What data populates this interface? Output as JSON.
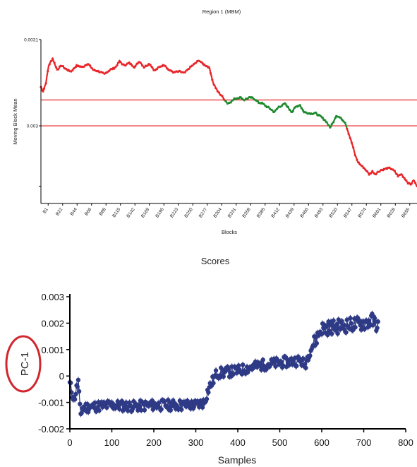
{
  "chart_data": [
    {
      "type": "line",
      "title": "Region 1 (MBM)",
      "xlabel": "Blocks",
      "ylabel": "Moving Block Mean",
      "ylim": [
        0.00291,
        0.0031
      ],
      "y_ticks": [
        {
          "value": 0.0031,
          "label": "0.0031"
        },
        {
          "value": 0.003,
          "label": "0.003"
        }
      ],
      "categories": [
        "B1",
        "B22",
        "B44",
        "B66",
        "B88",
        "B115",
        "B142",
        "B169",
        "B196",
        "B223",
        "B250",
        "B277",
        "B304",
        "B331",
        "B358",
        "B385",
        "B412",
        "B439",
        "B466",
        "B493",
        "B520",
        "B547",
        "B574",
        "B601",
        "B628",
        "B655"
      ],
      "reference_lines": [
        0.00303,
        0.003
      ],
      "colors": {
        "above": "#e8262a",
        "between": "#1f8a2e",
        "reference": "#e8262a"
      },
      "series": [
        {
          "x": [
            1,
            5,
            10,
            15,
            22,
            30,
            38,
            45,
            55,
            65,
            75,
            85,
            95,
            105,
            115,
            125,
            135,
            142,
            150,
            160,
            169,
            178,
            186,
            196,
            205,
            215,
            223,
            230,
            240,
            250,
            258,
            266,
            277,
            285,
            293,
            300,
            304,
            310,
            318,
            325,
            331,
            336,
            342,
            348,
            358,
            366,
            372,
            378,
            385,
            392,
            398,
            405,
            412,
            420,
            428,
            435,
            439,
            446,
            452,
            458,
            466,
            473,
            480,
            486,
            493,
            500,
            507,
            514,
            520,
            526,
            531,
            537,
            541,
            547,
            552,
            556,
            560,
            565,
            570,
            574,
            580,
            585,
            590,
            596,
            601,
            607,
            612,
            618,
            628,
            636,
            642,
            648,
            655,
            660,
            665,
            670,
            676
          ],
          "values": [
            0.003045,
            0.00304,
            0.00305,
            0.00307,
            0.003078,
            0.003065,
            0.00307,
            0.003066,
            0.003063,
            0.00307,
            0.003068,
            0.003072,
            0.003065,
            0.003063,
            0.00306,
            0.003065,
            0.003068,
            0.003075,
            0.00307,
            0.003073,
            0.003068,
            0.003075,
            0.003068,
            0.003072,
            0.003064,
            0.003069,
            0.003071,
            0.003065,
            0.003062,
            0.003063,
            0.003061,
            0.003066,
            0.003072,
            0.003076,
            0.003071,
            0.003069,
            0.003066,
            0.00305,
            0.00304,
            0.003035,
            0.00303,
            0.003026,
            0.003028,
            0.003031,
            0.003033,
            0.00303,
            0.003032,
            0.003033,
            0.003031,
            0.003027,
            0.003026,
            0.003023,
            0.00302,
            0.003016,
            0.003022,
            0.003024,
            0.003026,
            0.00302,
            0.003016,
            0.003022,
            0.003024,
            0.003016,
            0.003015,
            0.003014,
            0.003015,
            0.003012,
            0.003009,
            0.003004,
            0.002998,
            0.003005,
            0.003012,
            0.00301,
            0.003008,
            0.003004,
            0.002994,
            0.002986,
            0.002978,
            0.002966,
            0.002958,
            0.002955,
            0.002952,
            0.002948,
            0.002944,
            0.002947,
            0.002944,
            0.002947,
            0.002949,
            0.00295,
            0.002951,
            0.002947,
            0.002942,
            0.002944,
            0.002938,
            0.002934,
            0.002932,
            0.002937,
            0.00293
          ]
        }
      ]
    },
    {
      "type": "scatter",
      "title": "Scores",
      "xlabel": "Samples",
      "ylabel": "PC-1",
      "xlim": [
        0,
        800
      ],
      "ylim": [
        -0.002,
        0.003
      ],
      "x_ticks": [
        0,
        100,
        200,
        300,
        400,
        500,
        600,
        700,
        800
      ],
      "y_ticks": [
        {
          "value": -0.002,
          "label": "-0.002"
        },
        {
          "value": -0.001,
          "label": "-0.001"
        },
        {
          "value": 0,
          "label": "0"
        },
        {
          "value": 0.001,
          "label": "0.001"
        },
        {
          "value": 0.002,
          "label": "0.002"
        },
        {
          "value": 0.003,
          "label": "0.003"
        }
      ],
      "colors": {
        "points": "#2e3a85",
        "highlight": "#d0282e"
      },
      "series": [
        {
          "x": [
            0,
            10,
            20,
            25,
            30,
            60,
            100,
            150,
            200,
            250,
            300,
            320,
            330,
            340,
            350,
            400,
            450,
            500,
            550,
            560,
            570,
            580,
            600,
            650,
            700,
            720,
            735
          ],
          "values": [
            -0.0003,
            -0.0009,
            -0.0002,
            -0.0015,
            -0.0012,
            -0.00115,
            -0.0011,
            -0.00115,
            -0.0011,
            -0.0011,
            -0.0011,
            -0.001,
            -0.0005,
            -0.0002,
            0.0001,
            0.0002,
            0.0004,
            0.0005,
            0.0006,
            0.0004,
            0.0009,
            0.0012,
            0.0018,
            0.0019,
            0.002,
            0.0021,
            0.0019
          ]
        }
      ]
    }
  ]
}
